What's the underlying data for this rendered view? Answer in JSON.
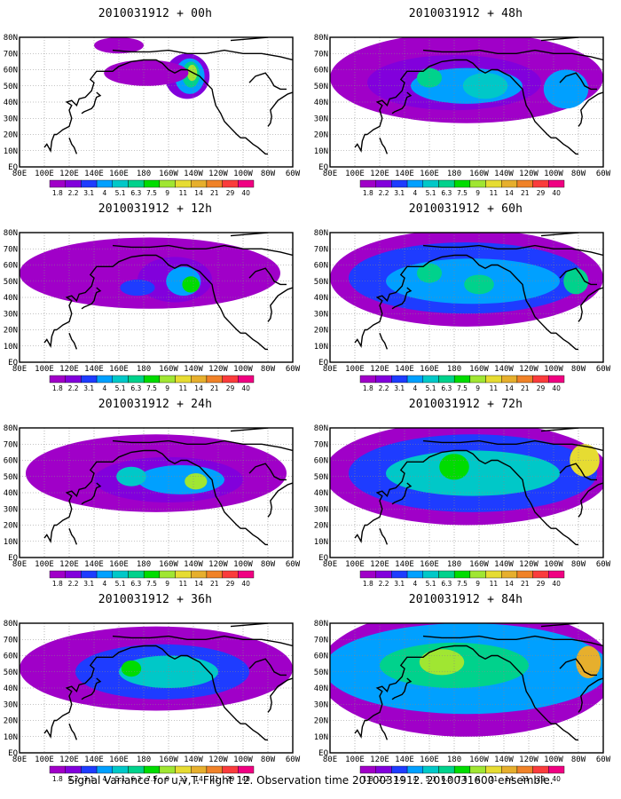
{
  "figure": {
    "caption": "Signal Variance for u,v,T. Flight 12. Observation time 2010031912. 2010031600 ensemble."
  },
  "panels": [
    {
      "title": "2010031912 + 00h"
    },
    {
      "title": "2010031912 + 48h"
    },
    {
      "title": "2010031912 + 12h"
    },
    {
      "title": "2010031912 + 60h"
    },
    {
      "title": "2010031912 + 24h"
    },
    {
      "title": "2010031912 + 72h"
    },
    {
      "title": "2010031912 + 36h"
    },
    {
      "title": "2010031912 + 84h"
    }
  ],
  "lon_labels": [
    "80E",
    "100E",
    "120E",
    "140E",
    "160E",
    "180",
    "160W",
    "140W",
    "120W",
    "100W",
    "80W",
    "60W"
  ],
  "lat_labels": [
    "80N",
    "70N",
    "60N",
    "50N",
    "40N",
    "30N",
    "20N",
    "10N",
    "EQ"
  ],
  "colorbar": {
    "labels": [
      "1.8",
      "2.2",
      "3.1",
      "4",
      "5.1",
      "6.3",
      "7.5",
      "9",
      "11",
      "14",
      "21",
      "29",
      "40"
    ],
    "colors": [
      "#a000c8",
      "#8200dc",
      "#1e3cff",
      "#00a0ff",
      "#00c8c8",
      "#00d28c",
      "#00dc00",
      "#a0e632",
      "#e6dc32",
      "#e6af2d",
      "#f08228",
      "#fa3c3c",
      "#f00082"
    ]
  },
  "chart_data": {
    "type": "heatmap",
    "fields": [
      {
        "lead": "00h",
        "regions": [
          {
            "lon": 215,
            "lat": 56,
            "rlon": 18,
            "rlat": 14,
            "level": 1
          },
          {
            "lon": 217,
            "lat": 56,
            "rlon": 12,
            "rlat": 11,
            "level": 3
          },
          {
            "lon": 218,
            "lat": 57,
            "rlon": 7,
            "rlat": 8,
            "level": 5
          },
          {
            "lon": 219,
            "lat": 58,
            "rlon": 4,
            "rlat": 5,
            "level": 7
          },
          {
            "lon": 182,
            "lat": 58,
            "rlon": 34,
            "rlat": 8,
            "level": 0
          },
          {
            "lon": 160,
            "lat": 75,
            "rlon": 20,
            "rlat": 5,
            "level": 0
          }
        ]
      },
      {
        "lead": "48h",
        "regions": [
          {
            "lon": 190,
            "lat": 55,
            "rlon": 110,
            "rlat": 28,
            "level": 0
          },
          {
            "lon": 180,
            "lat": 52,
            "rlon": 70,
            "rlat": 17,
            "level": 1
          },
          {
            "lon": 190,
            "lat": 50,
            "rlon": 45,
            "rlat": 11,
            "level": 3
          },
          {
            "lon": 205,
            "lat": 50,
            "rlon": 18,
            "rlat": 8,
            "level": 4
          },
          {
            "lon": 160,
            "lat": 55,
            "rlon": 10,
            "rlat": 6,
            "level": 5
          },
          {
            "lon": 270,
            "lat": 48,
            "rlon": 18,
            "rlat": 12,
            "level": 3
          }
        ]
      },
      {
        "lead": "12h",
        "regions": [
          {
            "lon": 185,
            "lat": 55,
            "rlon": 105,
            "rlat": 22,
            "level": 0
          },
          {
            "lon": 205,
            "lat": 51,
            "rlon": 30,
            "rlat": 14,
            "level": 1
          },
          {
            "lon": 212,
            "lat": 50,
            "rlon": 14,
            "rlat": 9,
            "level": 3
          },
          {
            "lon": 218,
            "lat": 48,
            "rlon": 7,
            "rlat": 5,
            "level": 6
          },
          {
            "lon": 175,
            "lat": 46,
            "rlon": 14,
            "rlat": 5,
            "level": 2
          }
        ]
      },
      {
        "lead": "60h",
        "regions": [
          {
            "lon": 190,
            "lat": 52,
            "rlon": 110,
            "rlat": 30,
            "level": 0
          },
          {
            "lon": 190,
            "lat": 52,
            "rlon": 95,
            "rlat": 22,
            "level": 2
          },
          {
            "lon": 195,
            "lat": 50,
            "rlon": 70,
            "rlat": 14,
            "level": 3
          },
          {
            "lon": 160,
            "lat": 55,
            "rlon": 10,
            "rlat": 6,
            "level": 5
          },
          {
            "lon": 200,
            "lat": 48,
            "rlon": 12,
            "rlat": 6,
            "level": 5
          },
          {
            "lon": 278,
            "lat": 50,
            "rlon": 10,
            "rlat": 8,
            "level": 5
          }
        ]
      },
      {
        "lead": "24h",
        "regions": [
          {
            "lon": 190,
            "lat": 52,
            "rlon": 105,
            "rlat": 24,
            "level": 0
          },
          {
            "lon": 200,
            "lat": 48,
            "rlon": 60,
            "rlat": 14,
            "level": 1
          },
          {
            "lon": 210,
            "lat": 48,
            "rlon": 35,
            "rlat": 9,
            "level": 3
          },
          {
            "lon": 222,
            "lat": 47,
            "rlon": 9,
            "rlat": 5,
            "level": 7
          },
          {
            "lon": 170,
            "lat": 50,
            "rlon": 12,
            "rlat": 6,
            "level": 4
          }
        ]
      },
      {
        "lead": "72h",
        "regions": [
          {
            "lon": 190,
            "lat": 52,
            "rlon": 115,
            "rlat": 32,
            "level": 0
          },
          {
            "lon": 195,
            "lat": 52,
            "rlon": 100,
            "rlat": 24,
            "level": 2
          },
          {
            "lon": 195,
            "lat": 52,
            "rlon": 70,
            "rlat": 14,
            "level": 4
          },
          {
            "lon": 180,
            "lat": 56,
            "rlon": 12,
            "rlat": 8,
            "level": 6
          },
          {
            "lon": 285,
            "lat": 60,
            "rlon": 12,
            "rlat": 10,
            "level": 8
          }
        ]
      },
      {
        "lead": "36h",
        "regions": [
          {
            "lon": 190,
            "lat": 52,
            "rlon": 110,
            "rlat": 26,
            "level": 0
          },
          {
            "lon": 195,
            "lat": 50,
            "rlon": 70,
            "rlat": 17,
            "level": 2
          },
          {
            "lon": 200,
            "lat": 50,
            "rlon": 40,
            "rlat": 10,
            "level": 4
          },
          {
            "lon": 170,
            "lat": 52,
            "rlon": 8,
            "rlat": 5,
            "level": 6
          }
        ]
      },
      {
        "lead": "84h",
        "regions": [
          {
            "lon": 190,
            "lat": 50,
            "rlon": 120,
            "rlat": 40,
            "level": 0
          },
          {
            "lon": 190,
            "lat": 52,
            "rlon": 115,
            "rlat": 28,
            "level": 3
          },
          {
            "lon": 180,
            "lat": 54,
            "rlon": 60,
            "rlat": 14,
            "level": 5
          },
          {
            "lon": 170,
            "lat": 56,
            "rlon": 18,
            "rlat": 8,
            "level": 7
          },
          {
            "lon": 288,
            "lat": 56,
            "rlon": 10,
            "rlat": 10,
            "level": 9
          }
        ]
      }
    ]
  }
}
